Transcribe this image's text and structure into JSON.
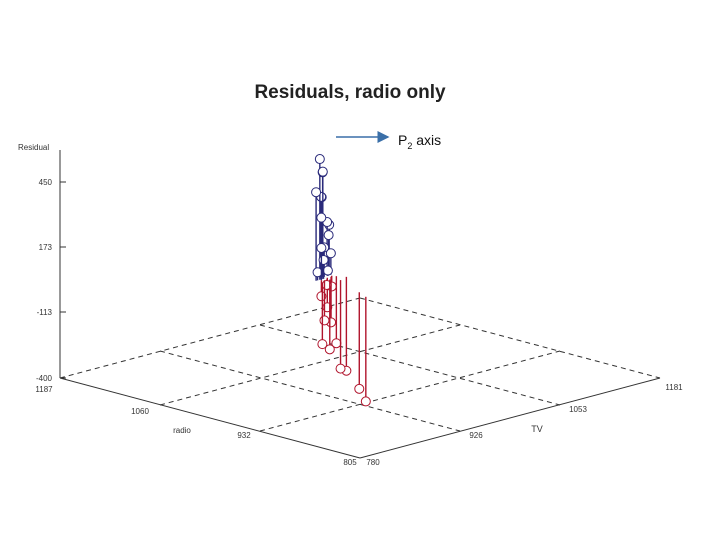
{
  "chart_data": {
    "type": "3d-scatter-residual",
    "title": "Residuals, radio only",
    "zlabel": "Residual",
    "xlabel": "TV",
    "ylabel": "radio",
    "z_ticks": [
      "450",
      "173",
      "-113",
      "-400"
    ],
    "tv_ticks": [
      "780",
      "926",
      "1053",
      "1181"
    ],
    "radio_ticks": [
      "805",
      "932",
      "1060",
      "1187"
    ],
    "tv_range": [
      780,
      1181
    ],
    "radio_range": [
      805,
      1187
    ],
    "z_range": [
      -400,
      450
    ],
    "annotation": {
      "text": "P",
      "subscript": "2",
      "suffix": " axis"
    },
    "colors": {
      "positive": "#2a2a7a",
      "negative": "#b0142c",
      "axis": "#333333",
      "arrow": "#3a6fa8"
    },
    "points": [
      {
        "tv": 931,
        "radio": 1000,
        "z": 450
      },
      {
        "tv": 935,
        "radio": 1000,
        "z": 400
      },
      {
        "tv": 940,
        "radio": 1005,
        "z": 390
      },
      {
        "tv": 926,
        "radio": 1000,
        "z": 330
      },
      {
        "tv": 938,
        "radio": 1005,
        "z": 300
      },
      {
        "tv": 944,
        "radio": 1010,
        "z": 290
      },
      {
        "tv": 933,
        "radio": 1000,
        "z": 230
      },
      {
        "tv": 946,
        "radio": 1005,
        "z": 200
      },
      {
        "tv": 954,
        "radio": 1010,
        "z": 180
      },
      {
        "tv": 948,
        "radio": 1005,
        "z": 150
      },
      {
        "tv": 931,
        "radio": 998,
        "z": 120
      },
      {
        "tv": 941,
        "radio": 1004,
        "z": 110
      },
      {
        "tv": 936,
        "radio": 1000,
        "z": 70
      },
      {
        "tv": 951,
        "radio": 1005,
        "z": 80
      },
      {
        "tv": 928,
        "radio": 1000,
        "z": 30
      },
      {
        "tv": 946,
        "radio": 1004,
        "z": 20
      },
      {
        "tv": 936,
        "radio": 996,
        "z": -20
      },
      {
        "tv": 931,
        "radio": 998,
        "z": -60
      },
      {
        "tv": 949,
        "radio": 1002,
        "z": -40
      },
      {
        "tv": 941,
        "radio": 1000,
        "z": -110
      },
      {
        "tv": 933,
        "radio": 996,
        "z": -150
      },
      {
        "tv": 946,
        "radio": 1000,
        "z": -170
      },
      {
        "tv": 926,
        "radio": 992,
        "z": -230
      },
      {
        "tv": 938,
        "radio": 994,
        "z": -260
      },
      {
        "tv": 951,
        "radio": 998,
        "z": -250
      },
      {
        "tv": 944,
        "radio": 986,
        "z": -330
      },
      {
        "tv": 956,
        "radio": 990,
        "z": -350
      },
      {
        "tv": 919,
        "radio": 930,
        "z": -390
      },
      {
        "tv": 926,
        "radio": 945,
        "z": -360
      }
    ]
  }
}
